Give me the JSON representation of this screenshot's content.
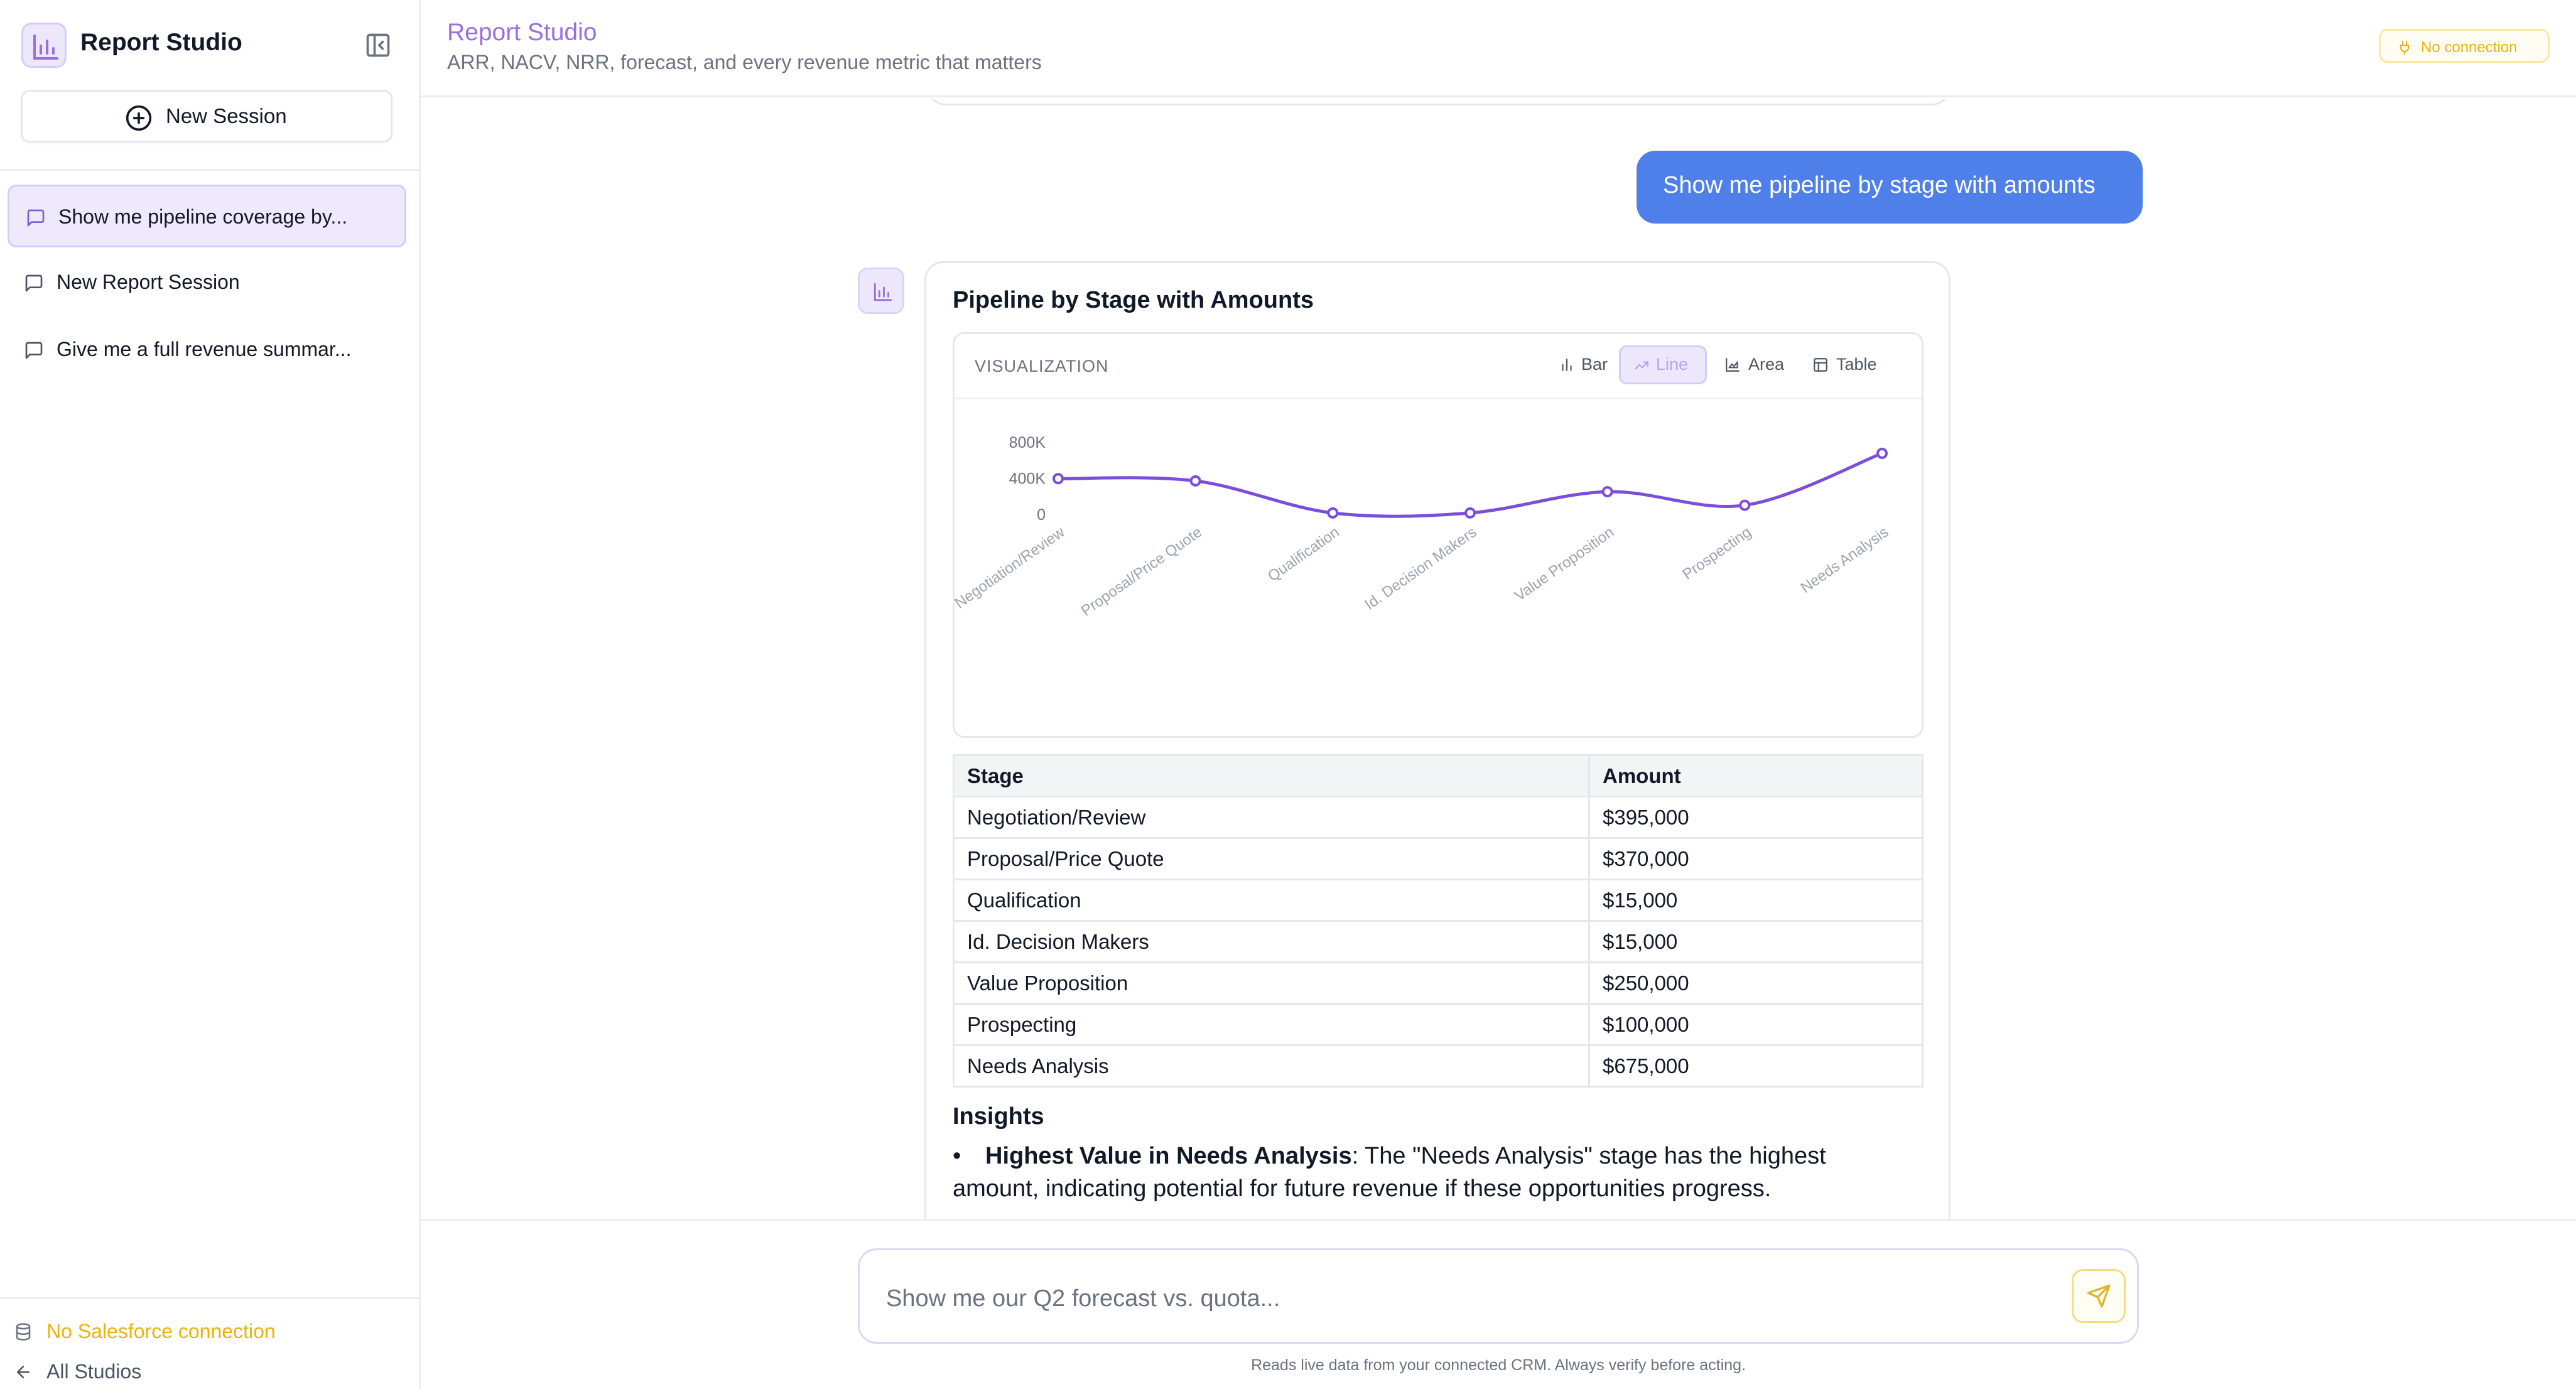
{
  "sidebar": {
    "app_name": "Report Studio",
    "new_session_label": "New Session",
    "sessions": [
      {
        "label": "Show me pipeline coverage by...",
        "active": true
      },
      {
        "label": "New Report Session",
        "active": false
      },
      {
        "label": "Give me a full revenue summar...",
        "active": false
      }
    ],
    "footer": {
      "connection_status": "No Salesforce connection",
      "back_label": "All Studios"
    }
  },
  "header": {
    "title": "Report Studio",
    "subtitle": "ARR, NACV, NRR, forecast, and every revenue metric that matters",
    "connection_badge": "No connection"
  },
  "chat": {
    "user_message": "Show me pipeline by stage with amounts",
    "answer": {
      "title": "Pipeline by Stage with Amounts",
      "viz_label": "VISUALIZATION",
      "viz_options": [
        "Bar",
        "Line",
        "Area",
        "Table"
      ],
      "viz_selected": "Line",
      "table": {
        "headers": [
          "Stage",
          "Amount"
        ],
        "rows": [
          [
            "Negotiation/Review",
            "$395,000"
          ],
          [
            "Proposal/Price Quote",
            "$370,000"
          ],
          [
            "Qualification",
            "$15,000"
          ],
          [
            "Id. Decision Makers",
            "$15,000"
          ],
          [
            "Value Proposition",
            "$250,000"
          ],
          [
            "Prospecting",
            "$100,000"
          ],
          [
            "Needs Analysis",
            "$675,000"
          ]
        ]
      },
      "insights_title": "Insights",
      "insights": [
        {
          "bold": "Highest Value in Needs Analysis",
          "text": ": The \"Needs Analysis\" stage has the highest amount, indicating potential for future revenue if these opportunities progress."
        }
      ]
    }
  },
  "chart_data": {
    "type": "line",
    "categories": [
      "Negotiation/Review",
      "Proposal/Price Quote",
      "Qualification",
      "Id. Decision Makers",
      "Value Proposition",
      "Prospecting",
      "Needs Analysis"
    ],
    "values": [
      395000,
      370000,
      15000,
      15000,
      250000,
      100000,
      675000
    ],
    "y_ticks": [
      "800K",
      "400K",
      "0"
    ],
    "ylim": [
      0,
      800000
    ],
    "line_color": "#7c4ddb",
    "grid": false
  },
  "input": {
    "placeholder": "Show me our Q2 forecast vs. quota...",
    "disclaimer": "Reads live data from your connected CRM. Always verify before acting."
  },
  "colors": {
    "accent": "#9b6ee0",
    "user_bubble": "#4f7fe8",
    "warning": "#eab308"
  }
}
